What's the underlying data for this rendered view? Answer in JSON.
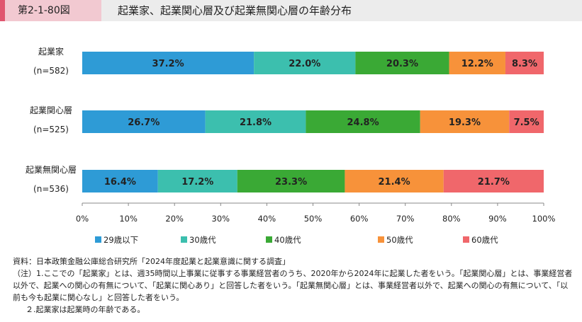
{
  "header": {
    "figure_number": "第2-1-80図",
    "title": "起業家、起業関心層及び起業無関心層の年齢分布"
  },
  "chart_data": {
    "type": "bar",
    "orientation": "horizontal",
    "stacked": "percent",
    "categories": [
      {
        "name": "起業家",
        "n": "(n=582)"
      },
      {
        "name": "起業関心層",
        "n": "(n=525)"
      },
      {
        "name": "起業無関心層",
        "n": "(n=536)"
      }
    ],
    "series": [
      {
        "name": "29歳以下",
        "color": "#2e9bd6",
        "values": [
          37.2,
          26.7,
          16.4
        ],
        "labels": [
          "37.2%",
          "26.7%",
          "16.4%"
        ]
      },
      {
        "name": "30歳代",
        "color": "#3cbfae",
        "values": [
          22.0,
          21.8,
          17.2
        ],
        "labels": [
          "22.0%",
          "21.8%",
          "17.2%"
        ]
      },
      {
        "name": "40歳代",
        "color": "#3aa935",
        "values": [
          20.3,
          24.8,
          23.3
        ],
        "labels": [
          "20.3%",
          "24.8%",
          "23.3%"
        ]
      },
      {
        "name": "50歳代",
        "color": "#f7923a",
        "values": [
          12.2,
          19.3,
          21.4
        ],
        "labels": [
          "12.2%",
          "19.3%",
          "21.4%"
        ]
      },
      {
        "name": "60歳代",
        "color": "#f0676b",
        "values": [
          8.3,
          7.5,
          21.7
        ],
        "labels": [
          "8.3%",
          "7.5%",
          "21.7%"
        ]
      }
    ],
    "xlim": [
      0,
      100
    ],
    "xticks": [
      "0%",
      "10%",
      "20%",
      "30%",
      "40%",
      "50%",
      "60%",
      "70%",
      "80%",
      "90%",
      "100%"
    ],
    "legend_position": "bottom"
  },
  "notes": {
    "source": "資料：日本政策金融公庫総合研究所「2024年度起業と起業意識に関する調査」",
    "note1": "（注）1.ここでの「起業家」とは、週35時間以上事業に従事する事業経営者のうち、2020年から2024年に起業した者をいう。「起業関心層」とは、事業経営者以外で、起業への関心の有無について、「起業に関心あり」と回答した者をいう。「起業無関心層」とは、事業経営者以外で、起業への関心の有無について、「以前も今も起業に関心なし」と回答した者をいう。",
    "note2": "２.起業家は起業時の年齢である。"
  }
}
